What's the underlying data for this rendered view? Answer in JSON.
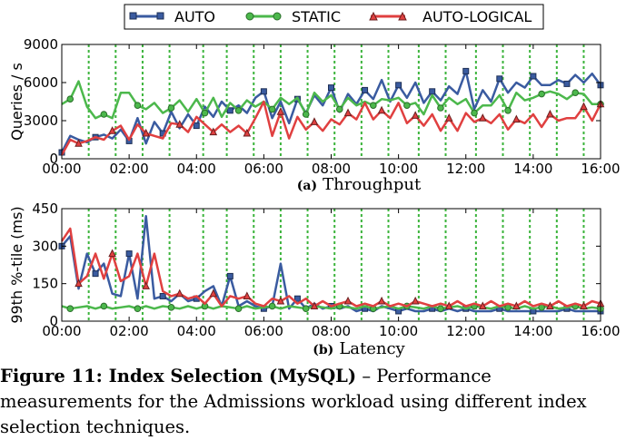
{
  "legend": {
    "items": [
      {
        "label": "AUTO",
        "color": "#3a5ba0",
        "marker": "square"
      },
      {
        "label": "STATIC",
        "color": "#4cb84c",
        "marker": "circle"
      },
      {
        "label": "AUTO-LOGICAL",
        "color": "#e04040",
        "marker": "triangle"
      }
    ]
  },
  "caption": {
    "label": "Figure 11: Index Selection (MySQL)",
    "text": " – Performance measurements for the Admissions workload using different index selection techniques."
  },
  "chart_data": [
    {
      "type": "line",
      "subtitle_letter": "(a)",
      "subtitle": "Throughput",
      "ylabel": "Queries / s",
      "xlabel": "",
      "x_ticks": [
        "00:00",
        "02:00",
        "04:00",
        "06:00",
        "08:00",
        "10:00",
        "12:00",
        "14:00",
        "16:00"
      ],
      "y_ticks": [
        "0",
        "3000",
        "6000",
        "9000"
      ],
      "ylim": [
        0,
        9000
      ],
      "xlim": [
        0,
        16
      ],
      "grid": "vertical dashed green lines",
      "x": [
        0,
        0.25,
        0.5,
        0.75,
        1,
        1.25,
        1.5,
        1.75,
        2,
        2.25,
        2.5,
        2.75,
        3,
        3.25,
        3.5,
        3.75,
        4,
        4.25,
        4.5,
        4.75,
        5,
        5.25,
        5.5,
        5.75,
        6,
        6.25,
        6.5,
        6.75,
        7,
        7.25,
        7.5,
        7.75,
        8,
        8.25,
        8.5,
        8.75,
        9,
        9.25,
        9.5,
        9.75,
        10,
        10.25,
        10.5,
        10.75,
        11,
        11.25,
        11.5,
        11.75,
        12,
        12.25,
        12.5,
        12.75,
        13,
        13.25,
        13.5,
        13.75,
        14,
        14.25,
        14.5,
        14.75,
        15,
        15.25,
        15.5,
        15.75,
        16
      ],
      "series": [
        {
          "name": "AUTO",
          "color": "#3a5ba0",
          "marker": "square",
          "values": [
            500,
            1800,
            1500,
            1300,
            1700,
            1900,
            1600,
            2300,
            1400,
            3200,
            1200,
            2900,
            2000,
            3700,
            2400,
            3500,
            2600,
            4100,
            3300,
            4500,
            3800,
            4200,
            3600,
            4800,
            5300,
            3200,
            4500,
            2800,
            4700,
            3600,
            5000,
            4200,
            5600,
            3700,
            5100,
            4300,
            5400,
            4700,
            6200,
            4500,
            5800,
            4800,
            6000,
            4400,
            5300,
            4600,
            5700,
            5100,
            6900,
            3900,
            5400,
            4500,
            6300,
            5200,
            6000,
            5600,
            6500,
            5800,
            5800,
            6200,
            5900,
            6600,
            6000,
            6700,
            5800
          ]
        },
        {
          "name": "STATIC",
          "color": "#4cb84c",
          "marker": "circle",
          "values": [
            4300,
            4700,
            6100,
            4100,
            3200,
            3500,
            3200,
            5200,
            5200,
            4200,
            3900,
            4400,
            3600,
            4000,
            4600,
            3700,
            4700,
            3600,
            4800,
            3300,
            4400,
            3800,
            4600,
            4100,
            4500,
            3900,
            4800,
            4300,
            4800,
            3500,
            5200,
            4500,
            5000,
            3900,
            4800,
            4200,
            4500,
            4200,
            4700,
            4600,
            4800,
            4200,
            4400,
            3500,
            5000,
            4000,
            4800,
            4300,
            4700,
            3600,
            4200,
            4200,
            5000,
            3800,
            5200,
            4600,
            4800,
            5100,
            5300,
            5100,
            4700,
            5200,
            5100,
            4300,
            4300
          ]
        },
        {
          "name": "AUTO-LOGICAL",
          "color": "#e04040",
          "marker": "triangle",
          "values": [
            300,
            1500,
            1200,
            1400,
            1700,
            1500,
            2200,
            2600,
            1500,
            2700,
            2000,
            1800,
            1600,
            2800,
            2700,
            2100,
            3300,
            2700,
            2100,
            2700,
            2100,
            2600,
            2000,
            3200,
            4500,
            1800,
            3700,
            1600,
            3300,
            2300,
            2900,
            2200,
            3100,
            2700,
            3600,
            3100,
            4400,
            3100,
            3800,
            3200,
            4400,
            2800,
            3400,
            2600,
            3500,
            2200,
            3200,
            2200,
            3600,
            2900,
            3200,
            2800,
            3500,
            2300,
            3100,
            2800,
            3500,
            2500,
            3500,
            3000,
            3200,
            3200,
            4100,
            3000,
            4300
          ]
        }
      ]
    },
    {
      "type": "line",
      "subtitle_letter": "(b)",
      "subtitle": "Latency",
      "ylabel": "99th %-tile (ms)",
      "xlabel": "",
      "x_ticks": [
        "00:00",
        "02:00",
        "04:00",
        "06:00",
        "08:00",
        "10:00",
        "12:00",
        "14:00",
        "16:00"
      ],
      "y_ticks": [
        "0",
        "150",
        "300",
        "450"
      ],
      "ylim": [
        0,
        450
      ],
      "xlim": [
        0,
        16
      ],
      "grid": "vertical dashed green lines",
      "x": [
        0,
        0.25,
        0.5,
        0.75,
        1,
        1.25,
        1.5,
        1.75,
        2,
        2.25,
        2.5,
        2.75,
        3,
        3.25,
        3.5,
        3.75,
        4,
        4.25,
        4.5,
        4.75,
        5,
        5.25,
        5.5,
        5.75,
        6,
        6.25,
        6.5,
        6.75,
        7,
        7.25,
        7.5,
        7.75,
        8,
        8.25,
        8.5,
        8.75,
        9,
        9.25,
        9.5,
        9.75,
        10,
        10.25,
        10.5,
        10.75,
        11,
        11.25,
        11.5,
        11.75,
        12,
        12.25,
        12.5,
        12.75,
        13,
        13.25,
        13.5,
        13.75,
        14,
        14.25,
        14.5,
        14.75,
        15,
        15.25,
        15.5,
        15.75,
        16
      ],
      "series": [
        {
          "name": "AUTO",
          "color": "#3a5ba0",
          "marker": "square",
          "values": [
            300,
            340,
            130,
            270,
            190,
            230,
            110,
            100,
            270,
            90,
            420,
            90,
            100,
            80,
            110,
            80,
            90,
            120,
            140,
            60,
            180,
            60,
            80,
            60,
            50,
            60,
            230,
            50,
            90,
            50,
            70,
            50,
            60,
            50,
            60,
            40,
            50,
            40,
            60,
            50,
            40,
            50,
            40,
            40,
            50,
            40,
            50,
            40,
            50,
            40,
            40,
            40,
            50,
            40,
            40,
            40,
            40,
            40,
            40,
            40,
            50,
            40,
            40,
            40,
            40
          ]
        },
        {
          "name": "STATIC",
          "color": "#4cb84c",
          "marker": "circle",
          "values": [
            60,
            50,
            55,
            60,
            50,
            60,
            50,
            55,
            60,
            50,
            60,
            50,
            60,
            55,
            50,
            60,
            50,
            60,
            50,
            60,
            55,
            50,
            60,
            50,
            55,
            60,
            50,
            60,
            55,
            50,
            60,
            55,
            50,
            60,
            55,
            50,
            60,
            50,
            55,
            60,
            50,
            60,
            55,
            50,
            60,
            50,
            55,
            60,
            50,
            60,
            55,
            50,
            60,
            55,
            50,
            60,
            50,
            55,
            60,
            50,
            55,
            60,
            50,
            55,
            50
          ]
        },
        {
          "name": "AUTO-LOGICAL",
          "color": "#e04040",
          "marker": "triangle",
          "values": [
            320,
            370,
            150,
            180,
            270,
            170,
            270,
            160,
            180,
            270,
            140,
            270,
            120,
            100,
            110,
            90,
            100,
            70,
            110,
            60,
            100,
            90,
            100,
            70,
            60,
            90,
            80,
            100,
            70,
            90,
            60,
            80,
            60,
            70,
            80,
            60,
            70,
            60,
            80,
            60,
            70,
            60,
            80,
            70,
            60,
            70,
            60,
            80,
            60,
            70,
            60,
            80,
            60,
            70,
            60,
            80,
            60,
            70,
            60,
            80,
            60,
            70,
            60,
            80,
            70
          ]
        }
      ]
    }
  ]
}
